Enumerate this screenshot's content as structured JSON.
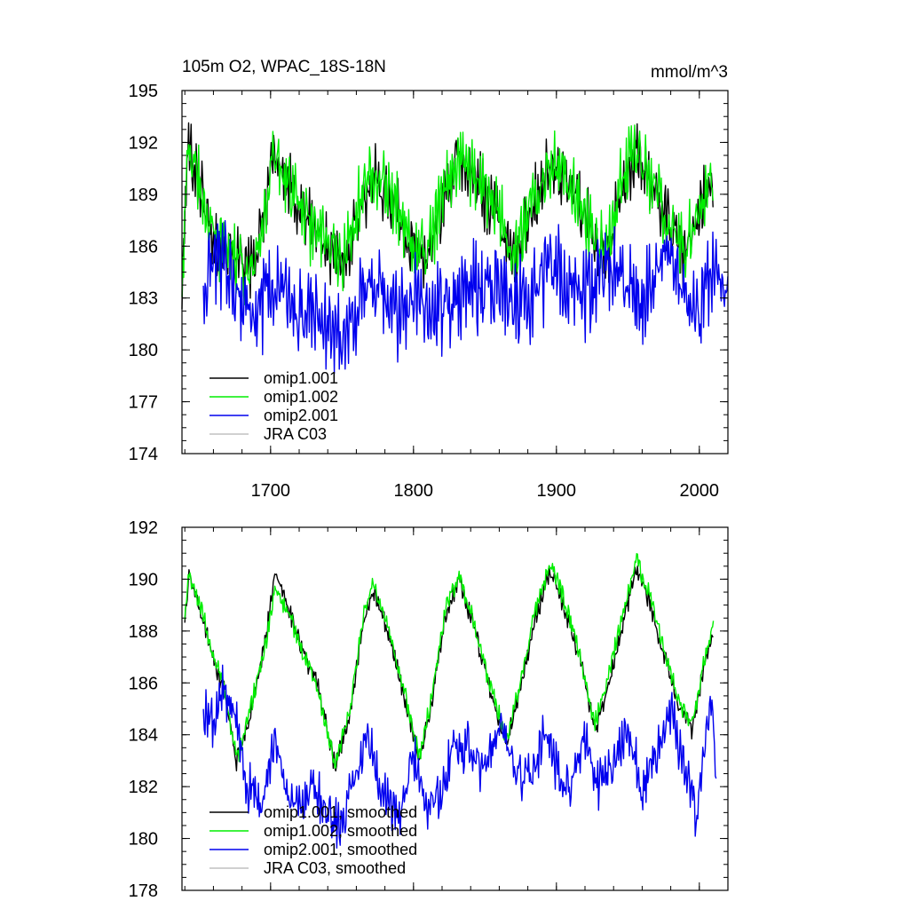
{
  "chart_data": [
    {
      "type": "line",
      "title_left": "105m O2, WPAC_18S-18N",
      "title_right": "mmol/m^3",
      "xlim": [
        1638,
        2020
      ],
      "ylim": [
        174,
        195
      ],
      "x_ticks": [
        1700,
        1800,
        1900,
        2000
      ],
      "x_tick_labels": [
        "1700",
        "1800",
        "1900",
        "2000"
      ],
      "y_ticks": [
        174,
        177,
        180,
        183,
        186,
        189,
        192,
        195
      ],
      "y_tick_labels": [
        "174",
        "177",
        "180",
        "183",
        "186",
        "189",
        "192",
        "195"
      ],
      "legend_position": "bottom-left",
      "series": [
        {
          "name": "omip1.001",
          "color": "#000000",
          "x_start": 1638,
          "x_end": 2010,
          "anchors": [
            [
              1638,
              183.0
            ],
            [
              1642,
              191.8
            ],
            [
              1650,
              189.8
            ],
            [
              1660,
              186.2
            ],
            [
              1670,
              186.0
            ],
            [
              1680,
              184.6
            ],
            [
              1690,
              185.0
            ],
            [
              1702,
              191.6
            ],
            [
              1712,
              189.6
            ],
            [
              1725,
              187.6
            ],
            [
              1740,
              186.0
            ],
            [
              1750,
              184.6
            ],
            [
              1762,
              188.2
            ],
            [
              1772,
              190.0
            ],
            [
              1785,
              188.6
            ],
            [
              1800,
              185.6
            ],
            [
              1810,
              185.4
            ],
            [
              1822,
              189.0
            ],
            [
              1832,
              191.2
            ],
            [
              1845,
              189.6
            ],
            [
              1860,
              187.6
            ],
            [
              1870,
              185.0
            ],
            [
              1885,
              188.8
            ],
            [
              1895,
              190.6
            ],
            [
              1908,
              189.6
            ],
            [
              1920,
              187.6
            ],
            [
              1935,
              185.2
            ],
            [
              1945,
              189.4
            ],
            [
              1955,
              191.4
            ],
            [
              1965,
              189.8
            ],
            [
              1980,
              187.0
            ],
            [
              1990,
              185.4
            ],
            [
              2000,
              188.0
            ],
            [
              2010,
              190.2
            ]
          ],
          "amplitude": 2.6
        },
        {
          "name": "omip1.002",
          "color": "#00ee00",
          "x_start": 1638,
          "x_end": 2010,
          "anchors": [
            [
              1638,
              183.0
            ],
            [
              1642,
              191.8
            ],
            [
              1650,
              189.8
            ],
            [
              1660,
              186.2
            ],
            [
              1670,
              186.0
            ],
            [
              1680,
              184.6
            ],
            [
              1690,
              185.0
            ],
            [
              1702,
              191.2
            ],
            [
              1712,
              189.8
            ],
            [
              1725,
              187.4
            ],
            [
              1740,
              186.0
            ],
            [
              1750,
              184.8
            ],
            [
              1762,
              188.6
            ],
            [
              1772,
              190.2
            ],
            [
              1785,
              188.8
            ],
            [
              1800,
              185.8
            ],
            [
              1810,
              185.6
            ],
            [
              1822,
              189.2
            ],
            [
              1832,
              191.4
            ],
            [
              1845,
              189.8
            ],
            [
              1860,
              187.8
            ],
            [
              1870,
              185.2
            ],
            [
              1885,
              189.0
            ],
            [
              1895,
              190.9
            ],
            [
              1908,
              189.8
            ],
            [
              1920,
              187.8
            ],
            [
              1935,
              185.6
            ],
            [
              1945,
              189.6
            ],
            [
              1955,
              191.7
            ],
            [
              1965,
              190.0
            ],
            [
              1980,
              187.2
            ],
            [
              1990,
              185.7
            ],
            [
              2000,
              188.3
            ],
            [
              2010,
              190.4
            ]
          ],
          "amplitude": 2.7
        },
        {
          "name": "omip2.001",
          "color": "#0000ee",
          "x_start": 1653,
          "x_end": 2020,
          "anchors": [
            [
              1653,
              183.5
            ],
            [
              1660,
              185.2
            ],
            [
              1670,
              185.0
            ],
            [
              1680,
              182.8
            ],
            [
              1690,
              182.0
            ],
            [
              1700,
              183.6
            ],
            [
              1710,
              183.2
            ],
            [
              1720,
              182.0
            ],
            [
              1730,
              182.6
            ],
            [
              1740,
              181.6
            ],
            [
              1750,
              180.6
            ],
            [
              1760,
              182.4
            ],
            [
              1770,
              183.6
            ],
            [
              1780,
              182.8
            ],
            [
              1790,
              181.8
            ],
            [
              1800,
              183.6
            ],
            [
              1810,
              181.6
            ],
            [
              1820,
              182.6
            ],
            [
              1830,
              183.4
            ],
            [
              1840,
              183.8
            ],
            [
              1850,
              183.2
            ],
            [
              1860,
              184.0
            ],
            [
              1870,
              182.8
            ],
            [
              1880,
              182.6
            ],
            [
              1890,
              184.2
            ],
            [
              1900,
              184.6
            ],
            [
              1910,
              183.8
            ],
            [
              1920,
              183.0
            ],
            [
              1930,
              184.6
            ],
            [
              1940,
              184.8
            ],
            [
              1950,
              183.6
            ],
            [
              1960,
              182.6
            ],
            [
              1970,
              184.6
            ],
            [
              1980,
              184.8
            ],
            [
              1990,
              183.2
            ],
            [
              2000,
              181.6
            ],
            [
              2010,
              185.0
            ],
            [
              2020,
              182.8
            ]
          ],
          "amplitude": 3.6
        },
        {
          "name": "JRA C03",
          "color": "#c0c0c0",
          "values": []
        }
      ]
    },
    {
      "type": "line",
      "xlim": [
        1638,
        2020
      ],
      "ylim": [
        178,
        192
      ],
      "x_ticks": [
        1700,
        1800,
        1900,
        2000
      ],
      "x_tick_labels": [],
      "y_ticks": [
        178,
        180,
        182,
        184,
        186,
        188,
        190,
        192
      ],
      "y_tick_labels": [
        "178",
        "180",
        "182",
        "184",
        "186",
        "188",
        "190",
        "192"
      ],
      "legend_position": "bottom-left",
      "series": [
        {
          "name": "omip1.001, smoothed",
          "color": "#000000",
          "x_start": 1640,
          "x_end": 2010,
          "anchors": [
            [
              1640,
              188.4
            ],
            [
              1643,
              190.2
            ],
            [
              1652,
              188.6
            ],
            [
              1660,
              186.8
            ],
            [
              1668,
              185.6
            ],
            [
              1676,
              183.0
            ],
            [
              1685,
              184.6
            ],
            [
              1697,
              187.8
            ],
            [
              1703,
              190.2
            ],
            [
              1712,
              189.0
            ],
            [
              1722,
              187.2
            ],
            [
              1733,
              186.0
            ],
            [
              1745,
              182.8
            ],
            [
              1755,
              184.6
            ],
            [
              1765,
              188.4
            ],
            [
              1772,
              189.6
            ],
            [
              1782,
              188.0
            ],
            [
              1793,
              185.6
            ],
            [
              1804,
              183.0
            ],
            [
              1812,
              185.0
            ],
            [
              1822,
              188.6
            ],
            [
              1832,
              190.0
            ],
            [
              1843,
              188.0
            ],
            [
              1852,
              186.0
            ],
            [
              1865,
              183.6
            ],
            [
              1875,
              185.8
            ],
            [
              1885,
              188.4
            ],
            [
              1896,
              190.4
            ],
            [
              1905,
              189.0
            ],
            [
              1915,
              187.2
            ],
            [
              1927,
              184.2
            ],
            [
              1937,
              186.0
            ],
            [
              1947,
              188.4
            ],
            [
              1956,
              190.4
            ],
            [
              1965,
              189.2
            ],
            [
              1975,
              187.2
            ],
            [
              1986,
              185.0
            ],
            [
              1995,
              184.2
            ],
            [
              2004,
              186.8
            ],
            [
              2010,
              188.0
            ]
          ],
          "amplitude": 0.5
        },
        {
          "name": "omip1.002, smoothed",
          "color": "#00ee00",
          "x_start": 1640,
          "x_end": 2010,
          "anchors": [
            [
              1640,
              188.4
            ],
            [
              1643,
              190.2
            ],
            [
              1652,
              188.8
            ],
            [
              1660,
              187.0
            ],
            [
              1668,
              185.8
            ],
            [
              1676,
              183.0
            ],
            [
              1685,
              184.8
            ],
            [
              1697,
              187.6
            ],
            [
              1703,
              189.6
            ],
            [
              1712,
              188.8
            ],
            [
              1722,
              187.2
            ],
            [
              1733,
              185.8
            ],
            [
              1745,
              182.8
            ],
            [
              1755,
              184.8
            ],
            [
              1765,
              188.6
            ],
            [
              1772,
              189.8
            ],
            [
              1782,
              188.2
            ],
            [
              1793,
              185.8
            ],
            [
              1804,
              183.2
            ],
            [
              1812,
              185.2
            ],
            [
              1822,
              188.8
            ],
            [
              1832,
              190.2
            ],
            [
              1843,
              188.2
            ],
            [
              1852,
              186.2
            ],
            [
              1865,
              183.8
            ],
            [
              1875,
              186.0
            ],
            [
              1885,
              188.8
            ],
            [
              1896,
              190.6
            ],
            [
              1905,
              189.3
            ],
            [
              1915,
              187.4
            ],
            [
              1927,
              184.4
            ],
            [
              1937,
              186.4
            ],
            [
              1947,
              188.8
            ],
            [
              1956,
              190.8
            ],
            [
              1965,
              189.4
            ],
            [
              1975,
              187.4
            ],
            [
              1986,
              185.2
            ],
            [
              1995,
              184.4
            ],
            [
              2004,
              187.0
            ],
            [
              2010,
              188.3
            ]
          ],
          "amplitude": 0.5
        },
        {
          "name": "omip2.001, smoothed",
          "color": "#0000ee",
          "x_start": 1653,
          "x_end": 2012,
          "anchors": [
            [
              1653,
              184.8
            ],
            [
              1660,
              184.4
            ],
            [
              1667,
              185.8
            ],
            [
              1675,
              184.8
            ],
            [
              1684,
              182.0
            ],
            [
              1693,
              181.2
            ],
            [
              1703,
              183.6
            ],
            [
              1710,
              182.0
            ],
            [
              1720,
              181.4
            ],
            [
              1730,
              182.0
            ],
            [
              1740,
              181.0
            ],
            [
              1750,
              180.4
            ],
            [
              1760,
              182.4
            ],
            [
              1768,
              184.0
            ],
            [
              1778,
              182.0
            ],
            [
              1790,
              180.8
            ],
            [
              1800,
              183.4
            ],
            [
              1808,
              181.2
            ],
            [
              1818,
              181.6
            ],
            [
              1828,
              183.4
            ],
            [
              1838,
              183.6
            ],
            [
              1850,
              182.6
            ],
            [
              1862,
              184.4
            ],
            [
              1872,
              182.6
            ],
            [
              1882,
              182.2
            ],
            [
              1892,
              184.2
            ],
            [
              1900,
              182.6
            ],
            [
              1910,
              181.6
            ],
            [
              1920,
              184.0
            ],
            [
              1928,
              182.0
            ],
            [
              1938,
              182.6
            ],
            [
              1950,
              184.4
            ],
            [
              1960,
              181.8
            ],
            [
              1970,
              183.4
            ],
            [
              1980,
              184.8
            ],
            [
              1990,
              182.8
            ],
            [
              1998,
              180.8
            ],
            [
              2005,
              184.2
            ],
            [
              2009,
              185.6
            ],
            [
              2012,
              182.2
            ]
          ],
          "amplitude": 1.3
        },
        {
          "name": "JRA C03, smoothed",
          "color": "#c0c0c0",
          "values": []
        }
      ]
    }
  ]
}
